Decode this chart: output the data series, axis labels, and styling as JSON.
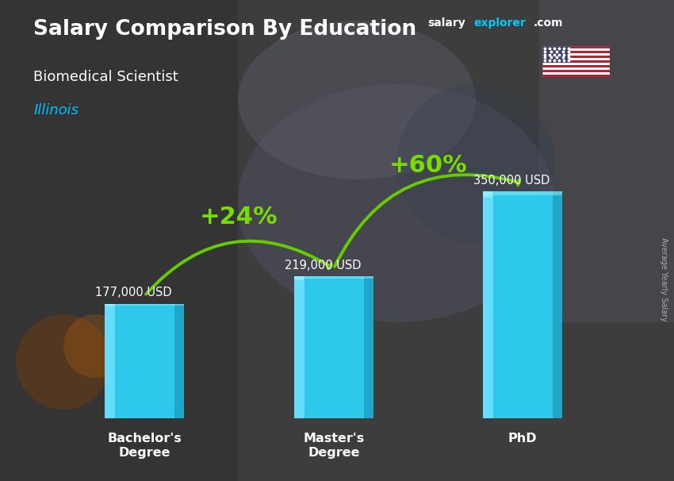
{
  "title": "Salary Comparison By Education",
  "subtitle": "Biomedical Scientist",
  "location": "Illinois",
  "categories": [
    "Bachelor's\nDegree",
    "Master's\nDegree",
    "PhD"
  ],
  "values": [
    177000,
    219000,
    350000
  ],
  "labels": [
    "177,000 USD",
    "219,000 USD",
    "350,000 USD"
  ],
  "pct_changes": [
    "+24%",
    "+60%"
  ],
  "bar_color_main": "#29C5E6",
  "bar_color_left": "#55D8F5",
  "bar_color_right": "#1A9BB5",
  "bg_color": "#3a3a3a",
  "overlay_color": "#2a2a2a",
  "title_color": "#FFFFFF",
  "subtitle_color": "#FFFFFF",
  "location_color": "#00BFFF",
  "label_color": "#FFFFFF",
  "pct_color": "#77DD00",
  "arrow_color": "#66CC00",
  "brand_color": "#00BFFF",
  "brand_text": "salaryexplorer.com",
  "ylabel": "Average Yearly Salary",
  "ylabel_color": "#AAAAAA",
  "ylim_max": 430000,
  "bar_width": 0.42,
  "bar_gap": 1.0
}
